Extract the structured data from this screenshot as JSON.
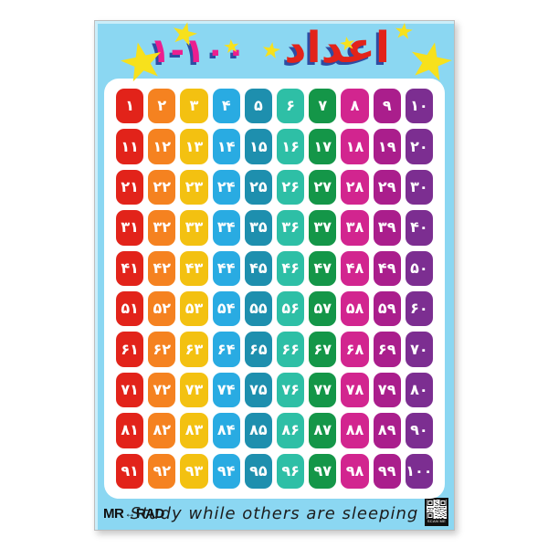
{
  "poster": {
    "title": {
      "word": "اعداد",
      "range": "۱-۱۰۰"
    },
    "grid": {
      "numbers": [
        "۱",
        "۲",
        "۳",
        "۴",
        "۵",
        "۶",
        "۷",
        "۸",
        "۹",
        "۱۰",
        "۱۱",
        "۱۲",
        "۱۳",
        "۱۴",
        "۱۵",
        "۱۶",
        "۱۷",
        "۱۸",
        "۱۹",
        "۲۰",
        "۲۱",
        "۲۲",
        "۲۳",
        "۲۴",
        "۲۵",
        "۲۶",
        "۲۷",
        "۲۸",
        "۲۹",
        "۳۰",
        "۳۱",
        "۳۲",
        "۳۳",
        "۳۴",
        "۳۵",
        "۳۶",
        "۳۷",
        "۳۸",
        "۳۹",
        "۴۰",
        "۴۱",
        "۴۲",
        "۴۳",
        "۴۴",
        "۴۵",
        "۴۶",
        "۴۷",
        "۴۸",
        "۴۹",
        "۵۰",
        "۵۱",
        "۵۲",
        "۵۳",
        "۵۴",
        "۵۵",
        "۵۶",
        "۵۷",
        "۵۸",
        "۵۹",
        "۶۰",
        "۶۱",
        "۶۲",
        "۶۳",
        "۶۴",
        "۶۵",
        "۶۶",
        "۶۷",
        "۶۸",
        "۶۹",
        "۷۰",
        "۷۱",
        "۷۲",
        "۷۳",
        "۷۴",
        "۷۵",
        "۷۶",
        "۷۷",
        "۷۸",
        "۷۹",
        "۸۰",
        "۸۱",
        "۸۲",
        "۸۳",
        "۸۴",
        "۸۵",
        "۸۶",
        "۸۷",
        "۸۸",
        "۸۹",
        "۹۰",
        "۹۱",
        "۹۲",
        "۹۳",
        "۹۴",
        "۹۵",
        "۹۶",
        "۹۷",
        "۹۸",
        "۹۹",
        "۱۰۰"
      ]
    },
    "footer": {
      "brand_left": "MR",
      "brand_arrow": "↔",
      "brand_right": "RAD",
      "slogan": "Study while others are sleeping",
      "qr_caption": "SCAN ME"
    },
    "colors": {
      "page_background": "#FFFFFF",
      "poster_background": "#8BD7F2",
      "card_background": "#FFFFFF",
      "star": "#F7E11C",
      "title_word_color": "#E2231A",
      "title_range_color": "#EC1E8F",
      "title_shadow_color": "#2E4CA3",
      "tile_text_color": "#FFFFFF",
      "column_colors": [
        "#E2231A",
        "#F58220",
        "#F3C111",
        "#29ABE2",
        "#1E8FAE",
        "#2EBFA6",
        "#149648",
        "#D2258F",
        "#AA1E8C",
        "#7C2E91"
      ]
    }
  }
}
